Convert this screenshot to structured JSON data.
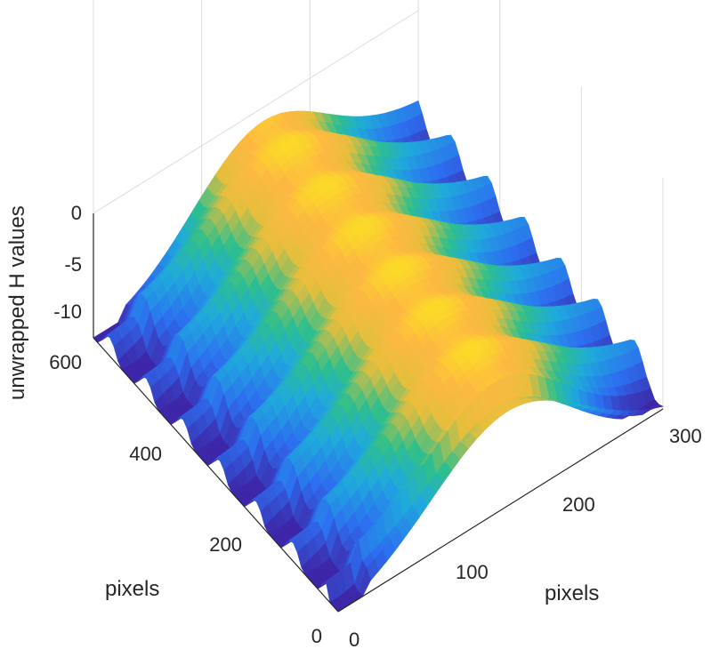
{
  "chart_data": {
    "type": "surface",
    "title": "",
    "xlabel": "pixels",
    "ylabel": "pixels",
    "zlabel": "unwrapped H values",
    "xlim": [
      0,
      300
    ],
    "ylim": [
      0,
      600
    ],
    "zlim": [
      -12,
      0
    ],
    "x_ticks": [
      "0",
      "100",
      "200",
      "300"
    ],
    "y_ticks": [
      "0",
      "200",
      "400",
      "600"
    ],
    "z_ticks": [
      "0",
      "-5",
      "-10"
    ],
    "grid": true,
    "colormap": "parula",
    "colors": {
      "low": "#3e26a8",
      "mid1": "#1f9ce9",
      "mid2": "#2ebf8c",
      "mid3": "#fdb942",
      "high": "#f9fb0e"
    }
  }
}
